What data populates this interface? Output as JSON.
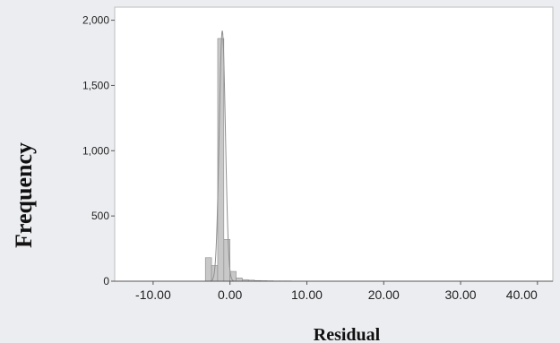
{
  "chart_data": {
    "type": "bar",
    "xlabel": "Residual",
    "ylabel": "Frequency",
    "xlim": [
      -15,
      42
    ],
    "ylim": [
      0,
      2100
    ],
    "grid": false,
    "x_ticks": [
      -10,
      0,
      10,
      20,
      30,
      40
    ],
    "x_tick_labels": [
      "-10.00",
      "0.00",
      "10.00",
      "20.00",
      "30.00",
      "40.00"
    ],
    "y_ticks": [
      0,
      500,
      1000,
      1500,
      2000
    ],
    "y_tick_labels": [
      "0",
      "500",
      "1,000",
      "1,500",
      "2,000"
    ],
    "bin_width": 0.8,
    "bins": [
      {
        "x0": -3.2,
        "value": 180
      },
      {
        "x0": -2.4,
        "value": 120
      },
      {
        "x0": -1.6,
        "value": 1860
      },
      {
        "x0": -0.8,
        "value": 320
      },
      {
        "x0": 0.0,
        "value": 75
      },
      {
        "x0": 0.8,
        "value": 25
      },
      {
        "x0": 1.6,
        "value": 12
      },
      {
        "x0": 2.4,
        "value": 8
      },
      {
        "x0": 3.2,
        "value": 5
      },
      {
        "x0": 4.0,
        "value": 4
      },
      {
        "x0": 4.8,
        "value": 3
      },
      {
        "x0": 5.6,
        "value": 2
      },
      {
        "x0": 6.4,
        "value": 2
      },
      {
        "x0": 7.2,
        "value": 2
      },
      {
        "x0": 8.0,
        "value": 1
      },
      {
        "x0": 8.8,
        "value": 1
      },
      {
        "x0": 9.6,
        "value": 1
      }
    ],
    "normal_curve": {
      "mean": -1.0,
      "sd": 0.4,
      "peak": 1920
    },
    "colors": {
      "bar_fill": "#c8c8c8",
      "bar_stroke": "#8a8a8a",
      "curve": "#8f8f8f",
      "plot_background": "#ffffff",
      "page_background": "#ecedf0"
    }
  }
}
